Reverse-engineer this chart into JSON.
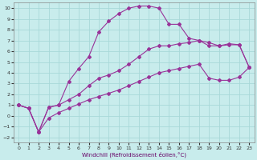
{
  "xlabel": "Windchill (Refroidissement éolien,°C)",
  "background_color": "#c8ecec",
  "grid_color": "#a8d8d8",
  "line_color": "#993399",
  "x_ticks": [
    0,
    1,
    2,
    3,
    4,
    5,
    6,
    7,
    8,
    9,
    10,
    11,
    12,
    13,
    14,
    15,
    16,
    17,
    18,
    19,
    20,
    21,
    22,
    23
  ],
  "y_ticks": [
    -2,
    -1,
    0,
    1,
    2,
    3,
    4,
    5,
    6,
    7,
    8,
    9,
    10
  ],
  "ylim": [
    -2.5,
    10.5
  ],
  "xlim": [
    -0.5,
    23.5
  ],
  "line1_x": [
    0,
    1,
    2,
    3,
    4,
    5,
    6,
    7,
    8,
    9,
    10,
    11,
    12,
    13,
    14,
    15,
    16,
    17,
    18,
    19,
    20,
    21,
    22,
    23
  ],
  "line1_y": [
    1.0,
    0.7,
    -1.5,
    0.8,
    1.0,
    3.2,
    4.4,
    5.5,
    7.8,
    8.8,
    9.5,
    10.0,
    10.2,
    10.2,
    10.0,
    8.5,
    8.5,
    7.2,
    7.0,
    6.8,
    6.5,
    6.7,
    6.6,
    4.5
  ],
  "line2_x": [
    0,
    1,
    2,
    3,
    4,
    5,
    6,
    7,
    8,
    9,
    10,
    11,
    12,
    13,
    14,
    15,
    16,
    17,
    18,
    19,
    20,
    21,
    22,
    23
  ],
  "line2_y": [
    1.0,
    0.7,
    -1.5,
    0.8,
    1.0,
    1.5,
    2.0,
    2.8,
    3.5,
    3.8,
    4.2,
    4.8,
    5.5,
    6.2,
    6.5,
    6.5,
    6.7,
    6.8,
    7.0,
    6.5,
    6.5,
    6.6,
    6.6,
    4.5
  ],
  "line3_x": [
    0,
    1,
    2,
    3,
    4,
    5,
    6,
    7,
    8,
    9,
    10,
    11,
    12,
    13,
    14,
    15,
    16,
    17,
    18,
    19,
    20,
    21,
    22,
    23
  ],
  "line3_y": [
    1.0,
    0.7,
    -1.5,
    -0.2,
    0.3,
    0.7,
    1.1,
    1.5,
    1.8,
    2.1,
    2.4,
    2.8,
    3.2,
    3.6,
    4.0,
    4.2,
    4.4,
    4.6,
    4.8,
    3.5,
    3.3,
    3.3,
    3.6,
    4.5
  ]
}
